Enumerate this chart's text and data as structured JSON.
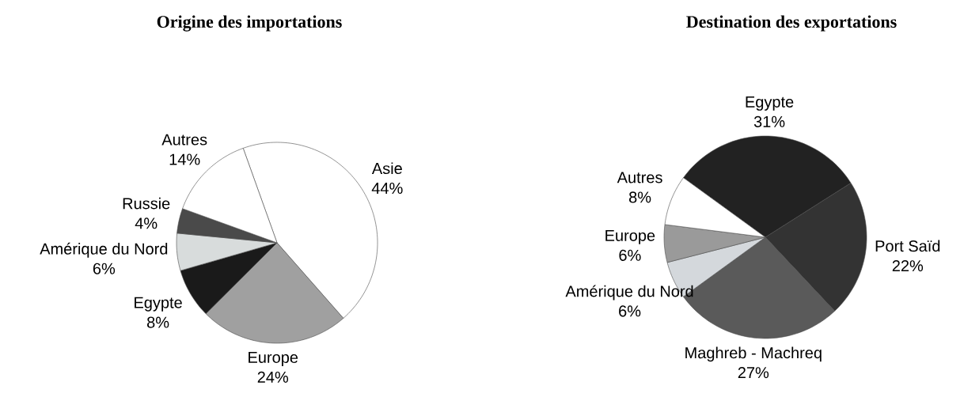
{
  "chart_data": [
    {
      "type": "pie",
      "title": "Origine des importations",
      "categories": [
        "Asie",
        "Europe",
        "Egypte",
        "Amérique du Nord",
        "Russie",
        "Autres"
      ],
      "values": [
        44,
        24,
        8,
        6,
        4,
        14
      ],
      "value_labels": [
        "44%",
        "24%",
        "8%",
        "6%",
        "4%",
        "14%"
      ],
      "colors": [
        "#ffffff",
        "#a0a0a0",
        "#1a1a1a",
        "#d8dcdc",
        "#4a4a4a",
        "#ffffff"
      ]
    },
    {
      "type": "pie",
      "title": "Destination des exportations",
      "categories": [
        "Egypte",
        "Port Saïd",
        "Maghreb - Machreq",
        "Amérique du Nord",
        "Europe",
        "Autres"
      ],
      "values": [
        31,
        22,
        27,
        6,
        6,
        8
      ],
      "value_labels": [
        "31%",
        "22%",
        "27%",
        "6%",
        "6%",
        "8%"
      ],
      "colors": [
        "#222222",
        "#333333",
        "#5a5a5a",
        "#d4d8dc",
        "#9a9a9a",
        "#ffffff"
      ]
    }
  ]
}
